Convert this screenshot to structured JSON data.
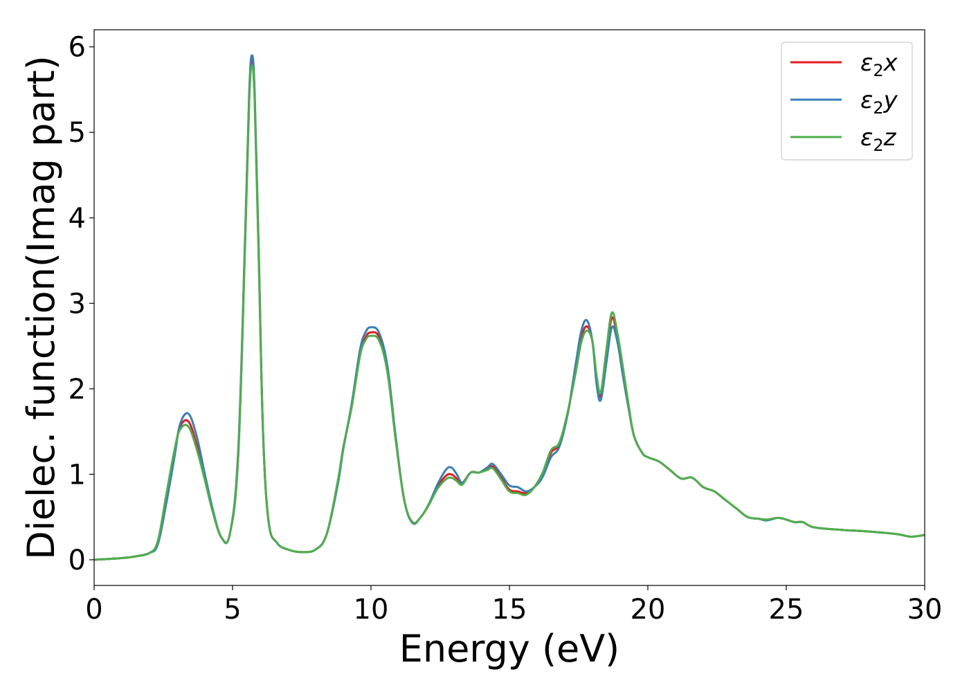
{
  "chart_data": {
    "type": "line",
    "title": "",
    "xlabel": "Energy (eV)",
    "ylabel": "Dielec. function(Imag part)",
    "xlim": [
      0,
      30
    ],
    "ylim": [
      -0.3,
      6.2
    ],
    "xticks": [
      0,
      5,
      10,
      15,
      20,
      25,
      30
    ],
    "yticks": [
      0,
      1,
      2,
      3,
      4,
      5,
      6
    ],
    "xtick_labels": [
      "0",
      "5",
      "10",
      "15",
      "20",
      "25",
      "30"
    ],
    "ytick_labels": [
      "0",
      "1",
      "2",
      "3",
      "4",
      "5",
      "6"
    ],
    "grid": false,
    "legend_position": "top-right",
    "series": [
      {
        "name": "ε₂x",
        "legend_symbol": "ε",
        "legend_sub": "2",
        "legend_var": "x",
        "color": "#e41a1c",
        "x": [
          0,
          1,
          1.5,
          2,
          2.3,
          2.6,
          2.9,
          3.1,
          3.4,
          3.7,
          4.0,
          4.3,
          4.6,
          4.9,
          5.2,
          5.45,
          5.6,
          5.7,
          5.8,
          5.95,
          6.1,
          6.3,
          6.6,
          7.0,
          7.5,
          8.0,
          8.4,
          8.8,
          9.0,
          9.3,
          9.6,
          9.8,
          10.0,
          10.3,
          10.6,
          10.9,
          11.2,
          11.5,
          11.8,
          12.1,
          12.4,
          12.7,
          12.9,
          13.1,
          13.3,
          13.6,
          13.9,
          14.2,
          14.4,
          14.7,
          15.0,
          15.3,
          15.6,
          15.9,
          16.2,
          16.5,
          16.8,
          17.1,
          17.4,
          17.6,
          17.8,
          18.0,
          18.15,
          18.3,
          18.5,
          18.7,
          18.9,
          19.1,
          19.3,
          19.5,
          19.8,
          20.0,
          20.4,
          20.8,
          21.2,
          21.6,
          22.0,
          22.4,
          22.8,
          23.2,
          23.6,
          24.0,
          24.3,
          24.7,
          25.0,
          25.3,
          25.6,
          26.0,
          27.0,
          28.0,
          29.0,
          29.5,
          30.0
        ],
        "values": [
          0.0,
          0.02,
          0.04,
          0.08,
          0.2,
          0.7,
          1.25,
          1.55,
          1.62,
          1.35,
          0.95,
          0.55,
          0.26,
          0.3,
          1.2,
          3.7,
          5.4,
          5.85,
          5.4,
          3.5,
          1.5,
          0.45,
          0.2,
          0.12,
          0.09,
          0.12,
          0.3,
          0.9,
          1.3,
          1.8,
          2.4,
          2.6,
          2.66,
          2.6,
          2.2,
          1.4,
          0.7,
          0.44,
          0.5,
          0.65,
          0.85,
          0.98,
          1.0,
          0.95,
          0.9,
          1.02,
          1.02,
          1.06,
          1.09,
          0.96,
          0.82,
          0.8,
          0.78,
          0.85,
          1.0,
          1.25,
          1.35,
          1.7,
          2.25,
          2.6,
          2.73,
          2.55,
          2.1,
          1.92,
          2.4,
          2.83,
          2.6,
          2.2,
          1.8,
          1.45,
          1.25,
          1.2,
          1.15,
          1.05,
          0.95,
          0.96,
          0.85,
          0.8,
          0.7,
          0.6,
          0.5,
          0.48,
          0.47,
          0.49,
          0.47,
          0.44,
          0.44,
          0.38,
          0.35,
          0.33,
          0.3,
          0.27,
          0.29
        ]
      },
      {
        "name": "ε₂y",
        "legend_symbol": "ε",
        "legend_sub": "2",
        "legend_var": "y",
        "color": "#377eb8",
        "x": [
          0,
          1,
          1.5,
          2,
          2.3,
          2.6,
          2.9,
          3.1,
          3.4,
          3.7,
          4.0,
          4.3,
          4.6,
          4.9,
          5.2,
          5.45,
          5.6,
          5.7,
          5.8,
          5.95,
          6.1,
          6.3,
          6.6,
          7.0,
          7.5,
          8.0,
          8.4,
          8.8,
          9.0,
          9.3,
          9.6,
          9.8,
          10.0,
          10.3,
          10.6,
          10.9,
          11.2,
          11.5,
          11.8,
          12.1,
          12.4,
          12.7,
          12.9,
          13.1,
          13.3,
          13.6,
          13.9,
          14.2,
          14.4,
          14.7,
          15.0,
          15.3,
          15.6,
          15.9,
          16.2,
          16.5,
          16.8,
          17.1,
          17.4,
          17.6,
          17.8,
          18.0,
          18.15,
          18.3,
          18.5,
          18.7,
          18.9,
          19.1,
          19.3,
          19.5,
          19.8,
          20.0,
          20.4,
          20.8,
          21.2,
          21.6,
          22.0,
          22.4,
          22.8,
          23.2,
          23.6,
          24.0,
          24.3,
          24.7,
          25.0,
          25.3,
          25.6,
          26.0,
          27.0,
          28.0,
          29.0,
          29.5,
          30.0
        ],
        "values": [
          0.0,
          0.02,
          0.04,
          0.08,
          0.18,
          0.65,
          1.2,
          1.58,
          1.71,
          1.45,
          1.0,
          0.57,
          0.26,
          0.3,
          1.25,
          3.75,
          5.45,
          5.9,
          5.45,
          3.55,
          1.5,
          0.45,
          0.2,
          0.12,
          0.09,
          0.12,
          0.3,
          0.88,
          1.3,
          1.82,
          2.45,
          2.66,
          2.72,
          2.65,
          2.25,
          1.42,
          0.7,
          0.43,
          0.5,
          0.66,
          0.88,
          1.05,
          1.08,
          1.0,
          0.9,
          1.02,
          1.02,
          1.08,
          1.12,
          1.0,
          0.87,
          0.85,
          0.8,
          0.85,
          0.97,
          1.2,
          1.32,
          1.7,
          2.3,
          2.68,
          2.8,
          2.55,
          2.05,
          1.87,
          2.3,
          2.72,
          2.55,
          2.15,
          1.78,
          1.45,
          1.25,
          1.2,
          1.15,
          1.05,
          0.95,
          0.96,
          0.85,
          0.8,
          0.7,
          0.6,
          0.5,
          0.48,
          0.46,
          0.49,
          0.47,
          0.44,
          0.44,
          0.38,
          0.35,
          0.33,
          0.3,
          0.27,
          0.29
        ]
      },
      {
        "name": "ε₂z",
        "legend_symbol": "ε",
        "legend_sub": "2",
        "legend_var": "z",
        "color": "#4daf4a",
        "x": [
          0,
          1,
          1.5,
          2,
          2.3,
          2.6,
          2.9,
          3.1,
          3.4,
          3.7,
          4.0,
          4.3,
          4.6,
          4.9,
          5.2,
          5.45,
          5.6,
          5.7,
          5.8,
          5.95,
          6.1,
          6.3,
          6.6,
          7.0,
          7.5,
          8.0,
          8.4,
          8.8,
          9.0,
          9.3,
          9.6,
          9.8,
          10.0,
          10.3,
          10.6,
          10.9,
          11.2,
          11.5,
          11.8,
          12.1,
          12.4,
          12.7,
          12.9,
          13.1,
          13.3,
          13.6,
          13.9,
          14.2,
          14.4,
          14.7,
          15.0,
          15.3,
          15.6,
          15.9,
          16.2,
          16.5,
          16.8,
          17.1,
          17.4,
          17.6,
          17.8,
          18.0,
          18.15,
          18.3,
          18.5,
          18.7,
          18.9,
          19.1,
          19.3,
          19.5,
          19.8,
          20.0,
          20.4,
          20.8,
          21.2,
          21.6,
          22.0,
          22.4,
          22.8,
          23.2,
          23.6,
          24.0,
          24.3,
          24.7,
          25.0,
          25.3,
          25.6,
          26.0,
          27.0,
          28.0,
          29.0,
          29.5,
          30.0
        ],
        "values": [
          0.0,
          0.02,
          0.04,
          0.08,
          0.22,
          0.75,
          1.28,
          1.52,
          1.56,
          1.3,
          0.93,
          0.54,
          0.26,
          0.3,
          1.18,
          3.65,
          5.35,
          5.78,
          5.35,
          3.45,
          1.5,
          0.45,
          0.2,
          0.12,
          0.09,
          0.12,
          0.3,
          0.92,
          1.32,
          1.78,
          2.38,
          2.57,
          2.62,
          2.56,
          2.18,
          1.38,
          0.7,
          0.44,
          0.5,
          0.65,
          0.83,
          0.94,
          0.96,
          0.92,
          0.88,
          1.02,
          1.02,
          1.05,
          1.07,
          0.94,
          0.8,
          0.78,
          0.76,
          0.85,
          1.02,
          1.28,
          1.37,
          1.72,
          2.2,
          2.55,
          2.68,
          2.55,
          2.15,
          1.96,
          2.45,
          2.89,
          2.65,
          2.25,
          1.82,
          1.45,
          1.25,
          1.2,
          1.15,
          1.05,
          0.95,
          0.96,
          0.85,
          0.8,
          0.7,
          0.6,
          0.5,
          0.48,
          0.47,
          0.49,
          0.47,
          0.44,
          0.44,
          0.38,
          0.35,
          0.33,
          0.3,
          0.27,
          0.29
        ]
      }
    ]
  }
}
